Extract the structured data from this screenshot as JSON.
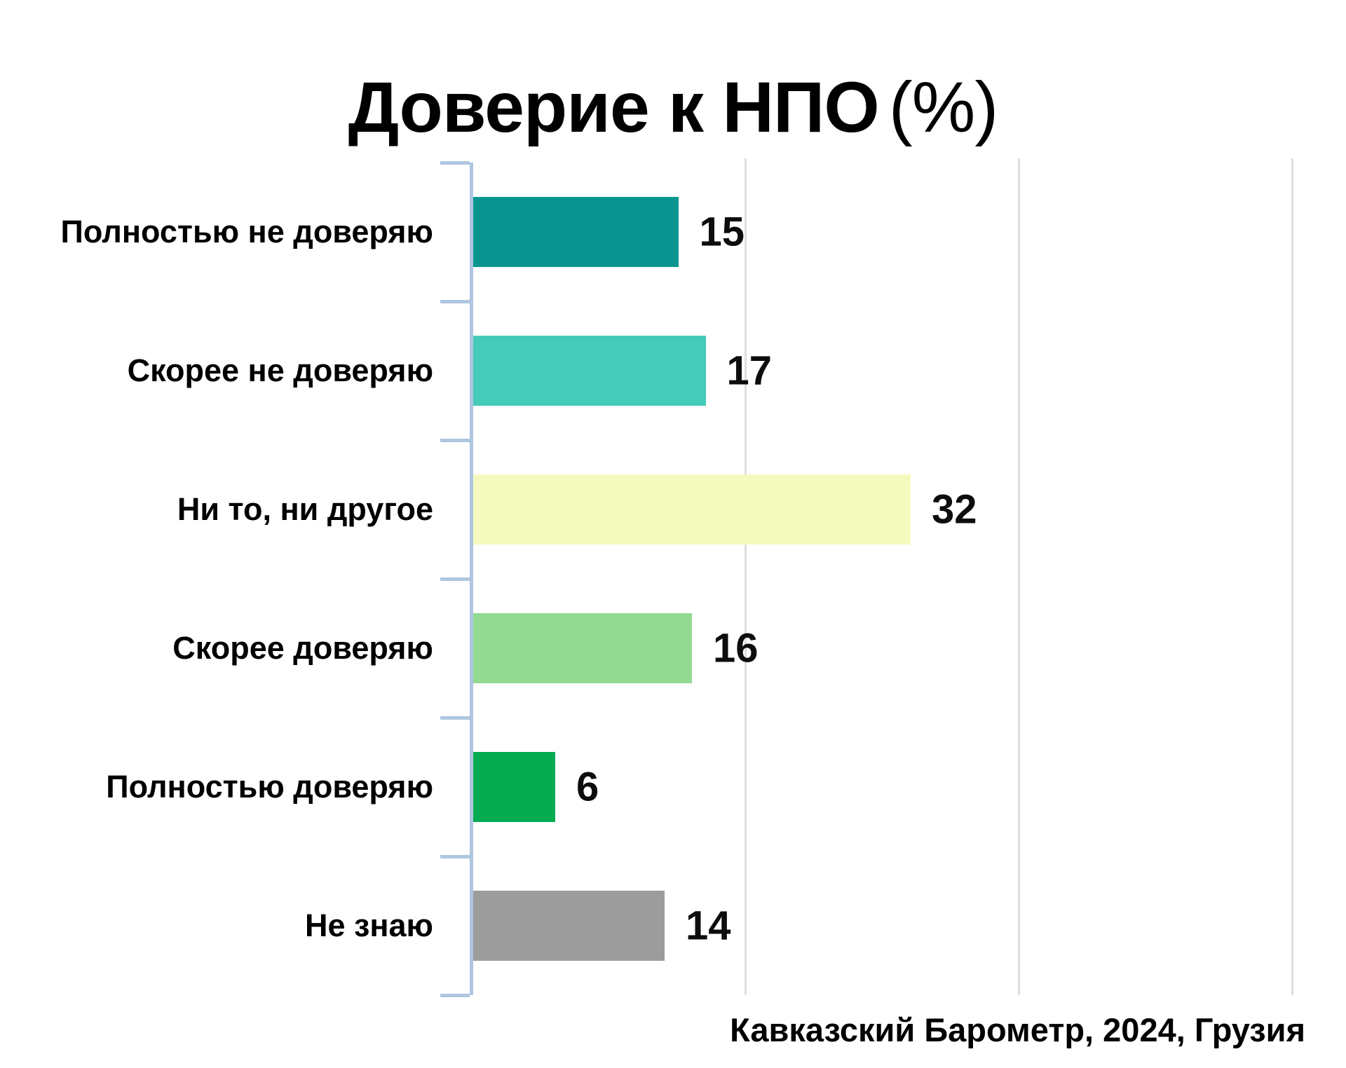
{
  "title_main": "Доверие к НПО",
  "title_suffix": "(%)",
  "source": "Кавказский Барометр, 2024, Грузия",
  "chart_data": {
    "type": "bar",
    "orientation": "horizontal",
    "title": "Доверие к НПО (%)",
    "categories": [
      "Полностью не доверяю",
      "Скорее не доверяю",
      "Ни то, ни другое",
      "Скорее доверяю",
      "Полностью доверяю",
      "Не знаю"
    ],
    "values": [
      15,
      17,
      32,
      16,
      6,
      14
    ],
    "bar_colors": [
      "#08958f",
      "#44ccb9",
      "#f4fabd",
      "#92da92",
      "#04ab51",
      "#9c9c9c"
    ],
    "value_label_color": "#0d0d0d",
    "axis_color": "#aec7e0",
    "gridline_color": "#dedede",
    "xlim": [
      0,
      64
    ],
    "gridline_values": [
      20,
      40,
      60
    ],
    "grid": "vertical-gridlines-only",
    "legend": "none",
    "source": "Кавказский Барометр, 2024, Грузия"
  }
}
